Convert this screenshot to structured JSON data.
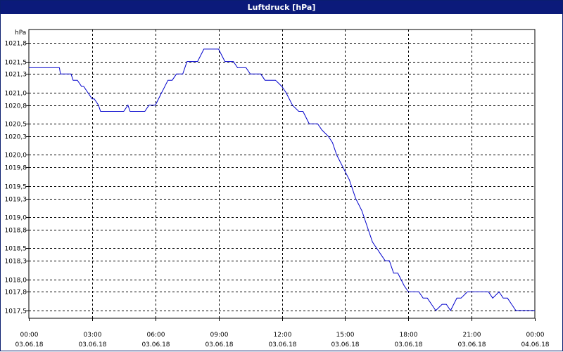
{
  "window": {
    "title": "Luftdruck [hPa]"
  },
  "chart_data": {
    "type": "line",
    "title": "Luftdruck [hPa]",
    "ylabel": "hPa",
    "xlabel": "",
    "ylim": [
      1017.5,
      1021.8
    ],
    "xlim": [
      0,
      24
    ],
    "grid": true,
    "line_color": "#0000cc",
    "y_ticks": [
      {
        "value": 1017.5,
        "label": "1017,5"
      },
      {
        "value": 1017.8,
        "label": "1017,8"
      },
      {
        "value": 1018.0,
        "label": "1018,0"
      },
      {
        "value": 1018.3,
        "label": "1018,3"
      },
      {
        "value": 1018.5,
        "label": "1018,5"
      },
      {
        "value": 1018.8,
        "label": "1018,8"
      },
      {
        "value": 1019.0,
        "label": "1019,0"
      },
      {
        "value": 1019.3,
        "label": "1019,3"
      },
      {
        "value": 1019.5,
        "label": "1019,5"
      },
      {
        "value": 1019.8,
        "label": "1019,8"
      },
      {
        "value": 1020.0,
        "label": "1020,0"
      },
      {
        "value": 1020.3,
        "label": "1020,3"
      },
      {
        "value": 1020.5,
        "label": "1020,5"
      },
      {
        "value": 1020.8,
        "label": "1020,8"
      },
      {
        "value": 1021.0,
        "label": "1021,0"
      },
      {
        "value": 1021.3,
        "label": "1021,3"
      },
      {
        "value": 1021.5,
        "label": "1021,5"
      },
      {
        "value": 1021.8,
        "label": "1021,8"
      }
    ],
    "x_ticks": [
      {
        "hour": 0,
        "time": "00:00",
        "date": "03.06.18"
      },
      {
        "hour": 3,
        "time": "03:00",
        "date": "03.06.18"
      },
      {
        "hour": 6,
        "time": "06:00",
        "date": "03.06.18"
      },
      {
        "hour": 9,
        "time": "09:00",
        "date": "03.06.18"
      },
      {
        "hour": 12,
        "time": "12:00",
        "date": "03.06.18"
      },
      {
        "hour": 15,
        "time": "15:00",
        "date": "03.06.18"
      },
      {
        "hour": 18,
        "time": "18:00",
        "date": "03.06.18"
      },
      {
        "hour": 21,
        "time": "21:00",
        "date": "03.06.18"
      },
      {
        "hour": 24,
        "time": "00:00",
        "date": "04.06.18"
      }
    ],
    "series": [
      {
        "x": [
          0,
          1.45,
          1.5,
          2.0,
          2.1,
          2.3,
          2.5,
          2.6,
          2.8,
          3.0,
          3.1,
          3.3,
          3.4,
          3.6,
          4.0,
          4.5,
          4.7,
          4.8,
          5.0,
          5.5,
          5.7,
          6.0,
          6.3,
          6.6,
          6.8,
          7.0,
          7.3,
          7.5,
          7.7,
          8.0,
          8.3,
          8.7,
          9.0,
          9.3,
          9.7,
          9.9,
          10.3,
          10.5,
          11.0,
          11.2,
          11.7,
          12.0,
          12.2,
          12.5,
          12.8,
          13.0,
          13.3,
          13.5,
          13.7,
          13.9,
          14.2,
          14.4,
          14.6,
          14.9,
          15.2,
          15.5,
          15.8,
          16.0,
          16.3,
          16.5,
          16.7,
          16.9,
          17.1,
          17.3,
          17.5,
          17.8,
          18.0,
          18.2,
          18.5,
          18.7,
          18.9,
          19.1,
          19.3,
          19.6,
          19.8,
          20.0,
          20.3,
          20.5,
          20.8,
          21.0,
          21.3,
          21.6,
          21.8,
          22.0,
          22.3,
          22.5,
          22.7,
          22.9,
          23.1,
          23.4,
          23.7,
          24.0
        ],
        "y": [
          1021.4,
          1021.4,
          1021.3,
          1021.3,
          1021.2,
          1021.2,
          1021.1,
          1021.1,
          1021.0,
          1020.9,
          1020.9,
          1020.8,
          1020.7,
          1020.7,
          1020.7,
          1020.7,
          1020.8,
          1020.7,
          1020.7,
          1020.7,
          1020.8,
          1020.8,
          1021.0,
          1021.2,
          1021.2,
          1021.3,
          1021.3,
          1021.5,
          1021.5,
          1021.5,
          1021.7,
          1021.7,
          1021.7,
          1021.5,
          1021.5,
          1021.4,
          1021.4,
          1021.3,
          1021.3,
          1021.2,
          1021.2,
          1021.1,
          1021.0,
          1020.8,
          1020.7,
          1020.7,
          1020.5,
          1020.5,
          1020.5,
          1020.4,
          1020.3,
          1020.2,
          1020.0,
          1019.8,
          1019.6,
          1019.3,
          1019.1,
          1018.9,
          1018.6,
          1018.5,
          1018.4,
          1018.3,
          1018.3,
          1018.1,
          1018.1,
          1017.9,
          1017.8,
          1017.8,
          1017.8,
          1017.7,
          1017.7,
          1017.6,
          1017.5,
          1017.6,
          1017.6,
          1017.5,
          1017.7,
          1017.7,
          1017.8,
          1017.8,
          1017.8,
          1017.8,
          1017.8,
          1017.7,
          1017.8,
          1017.7,
          1017.7,
          1017.6,
          1017.5,
          1017.5,
          1017.5,
          1017.5
        ]
      }
    ]
  }
}
